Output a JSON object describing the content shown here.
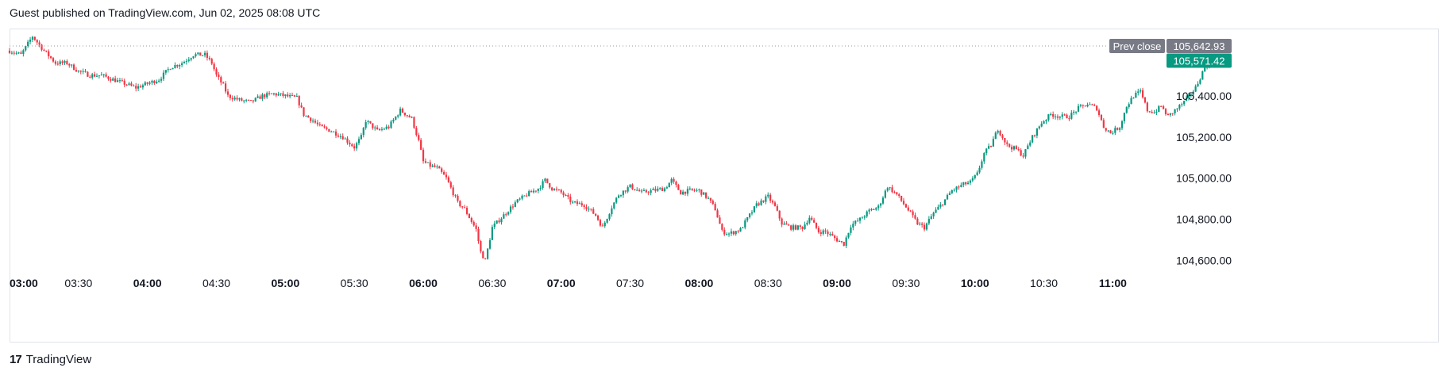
{
  "header": {
    "published_text": "Guest published on TradingView.com, Jun 02, 2025 08:08 UTC"
  },
  "footer": {
    "logo_glyph": "17",
    "brand": "TradingView"
  },
  "chart_data": {
    "type": "candlestick",
    "x_ticks": [
      {
        "label": "03:00",
        "t": 0,
        "bold": true
      },
      {
        "label": "03:30",
        "t": 30,
        "bold": false
      },
      {
        "label": "04:00",
        "t": 60,
        "bold": true
      },
      {
        "label": "04:30",
        "t": 90,
        "bold": false
      },
      {
        "label": "05:00",
        "t": 120,
        "bold": true
      },
      {
        "label": "05:30",
        "t": 150,
        "bold": false
      },
      {
        "label": "06:00",
        "t": 180,
        "bold": true
      },
      {
        "label": "06:30",
        "t": 210,
        "bold": false
      },
      {
        "label": "07:00",
        "t": 240,
        "bold": true
      },
      {
        "label": "07:30",
        "t": 270,
        "bold": false
      },
      {
        "label": "08:00",
        "t": 300,
        "bold": true
      },
      {
        "label": "08:30",
        "t": 330,
        "bold": false
      },
      {
        "label": "09:00",
        "t": 360,
        "bold": true
      },
      {
        "label": "09:30",
        "t": 390,
        "bold": false
      },
      {
        "label": "10:00",
        "t": 420,
        "bold": true
      },
      {
        "label": "10:30",
        "t": 450,
        "bold": false
      },
      {
        "label": "11:00",
        "t": 480,
        "bold": true
      }
    ],
    "y_ticks": [
      "105,400.00",
      "105,200.00",
      "105,000.00",
      "104,800.00",
      "104,600.00"
    ],
    "y_tick_values": [
      105400,
      105200,
      105000,
      104800,
      104600
    ],
    "ylim": [
      104540,
      105720
    ],
    "xlim_minutes": [
      0,
      503
    ],
    "prev_close": {
      "label": "Prev close",
      "value": 105642.93,
      "value_text": "105,642.93"
    },
    "last_price": {
      "value": 105571.42,
      "value_text": "105,571.42"
    },
    "colors": {
      "up": "#089981",
      "down": "#f23645",
      "prev_close_bg": "#787b86",
      "grid": "#e0e3eb"
    },
    "key_points": [
      [
        0,
        105620
      ],
      [
        5,
        105600
      ],
      [
        10,
        105690
      ],
      [
        15,
        105620
      ],
      [
        20,
        105560
      ],
      [
        25,
        105560
      ],
      [
        30,
        105520
      ],
      [
        35,
        105500
      ],
      [
        40,
        105500
      ],
      [
        45,
        105480
      ],
      [
        50,
        105460
      ],
      [
        55,
        105440
      ],
      [
        60,
        105460
      ],
      [
        65,
        105480
      ],
      [
        70,
        105540
      ],
      [
        75,
        105560
      ],
      [
        80,
        105600
      ],
      [
        85,
        105600
      ],
      [
        88,
        105560
      ],
      [
        90,
        105500
      ],
      [
        93,
        105450
      ],
      [
        95,
        105400
      ],
      [
        100,
        105380
      ],
      [
        105,
        105370
      ],
      [
        110,
        105400
      ],
      [
        115,
        105410
      ],
      [
        120,
        105400
      ],
      [
        125,
        105390
      ],
      [
        128,
        105310
      ],
      [
        132,
        105280
      ],
      [
        135,
        105250
      ],
      [
        140,
        105230
      ],
      [
        145,
        105200
      ],
      [
        150,
        105150
      ],
      [
        153,
        105200
      ],
      [
        155,
        105280
      ],
      [
        160,
        105230
      ],
      [
        165,
        105250
      ],
      [
        170,
        105330
      ],
      [
        175,
        105290
      ],
      [
        178,
        105180
      ],
      [
        180,
        105080
      ],
      [
        183,
        105060
      ],
      [
        186,
        105050
      ],
      [
        190,
        105000
      ],
      [
        195,
        104880
      ],
      [
        198,
        104850
      ],
      [
        200,
        104810
      ],
      [
        203,
        104750
      ],
      [
        205,
        104640
      ],
      [
        207,
        104600
      ],
      [
        210,
        104760
      ],
      [
        215,
        104820
      ],
      [
        220,
        104880
      ],
      [
        225,
        104920
      ],
      [
        230,
        104950
      ],
      [
        233,
        104990
      ],
      [
        236,
        104950
      ],
      [
        240,
        104930
      ],
      [
        245,
        104880
      ],
      [
        250,
        104870
      ],
      [
        255,
        104820
      ],
      [
        258,
        104760
      ],
      [
        262,
        104860
      ],
      [
        265,
        104920
      ],
      [
        270,
        104960
      ],
      [
        275,
        104930
      ],
      [
        280,
        104940
      ],
      [
        285,
        104950
      ],
      [
        288,
        104990
      ],
      [
        292,
        104930
      ],
      [
        296,
        104940
      ],
      [
        300,
        104940
      ],
      [
        304,
        104900
      ],
      [
        307,
        104850
      ],
      [
        310,
        104740
      ],
      [
        313,
        104730
      ],
      [
        318,
        104750
      ],
      [
        322,
        104820
      ],
      [
        325,
        104870
      ],
      [
        330,
        104910
      ],
      [
        333,
        104860
      ],
      [
        336,
        104780
      ],
      [
        340,
        104760
      ],
      [
        345,
        104760
      ],
      [
        348,
        104810
      ],
      [
        352,
        104740
      ],
      [
        355,
        104740
      ],
      [
        360,
        104700
      ],
      [
        363,
        104680
      ],
      [
        366,
        104770
      ],
      [
        370,
        104800
      ],
      [
        374,
        104840
      ],
      [
        378,
        104860
      ],
      [
        382,
        104960
      ],
      [
        386,
        104920
      ],
      [
        390,
        104860
      ],
      [
        395,
        104780
      ],
      [
        398,
        104760
      ],
      [
        402,
        104830
      ],
      [
        406,
        104880
      ],
      [
        410,
        104940
      ],
      [
        415,
        104970
      ],
      [
        418,
        104980
      ],
      [
        421,
        105020
      ],
      [
        424,
        105120
      ],
      [
        427,
        105160
      ],
      [
        430,
        105240
      ],
      [
        434,
        105160
      ],
      [
        438,
        105140
      ],
      [
        441,
        105110
      ],
      [
        445,
        105200
      ],
      [
        449,
        105270
      ],
      [
        453,
        105310
      ],
      [
        457,
        105300
      ],
      [
        461,
        105300
      ],
      [
        465,
        105340
      ],
      [
        469,
        105360
      ],
      [
        473,
        105340
      ],
      [
        476,
        105250
      ],
      [
        479,
        105220
      ],
      [
        483,
        105250
      ],
      [
        486,
        105350
      ],
      [
        489,
        105400
      ],
      [
        492,
        105420
      ],
      [
        495,
        105330
      ],
      [
        498,
        105320
      ],
      [
        501,
        105350
      ],
      [
        504,
        105300
      ],
      [
        508,
        105340
      ],
      [
        512,
        105380
      ],
      [
        516,
        105440
      ],
      [
        520,
        105540
      ],
      [
        522,
        105571
      ]
    ]
  }
}
